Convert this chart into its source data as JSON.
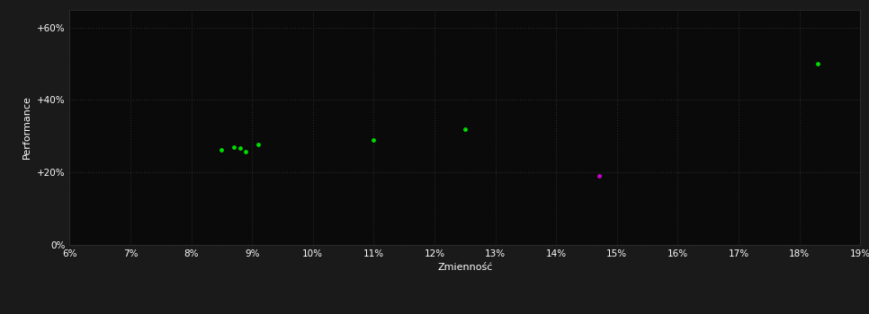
{
  "background_color": "#1a1a1a",
  "plot_bg_color": "#0a0a0a",
  "grid_color": "#2a2a2a",
  "text_color": "#ffffff",
  "xlabel": "Zmienność",
  "ylabel": "Performance",
  "xlim": [
    0.06,
    0.19
  ],
  "ylim": [
    0.0,
    0.65
  ],
  "xticks": [
    0.06,
    0.07,
    0.08,
    0.09,
    0.1,
    0.11,
    0.12,
    0.13,
    0.14,
    0.15,
    0.16,
    0.17,
    0.18,
    0.19
  ],
  "yticks": [
    0.0,
    0.2,
    0.4,
    0.6
  ],
  "ytick_labels": [
    "0%",
    "+20%",
    "+40%",
    "+60%"
  ],
  "green_points": [
    [
      0.085,
      0.262
    ],
    [
      0.087,
      0.271
    ],
    [
      0.088,
      0.267
    ],
    [
      0.089,
      0.257
    ],
    [
      0.091,
      0.277
    ],
    [
      0.11,
      0.29
    ],
    [
      0.125,
      0.32
    ],
    [
      0.183,
      0.5
    ]
  ],
  "magenta_points": [
    [
      0.147,
      0.19
    ]
  ],
  "green_color": "#00dd00",
  "magenta_color": "#cc00cc",
  "marker_size": 12,
  "figsize": [
    9.66,
    3.5
  ],
  "dpi": 100
}
